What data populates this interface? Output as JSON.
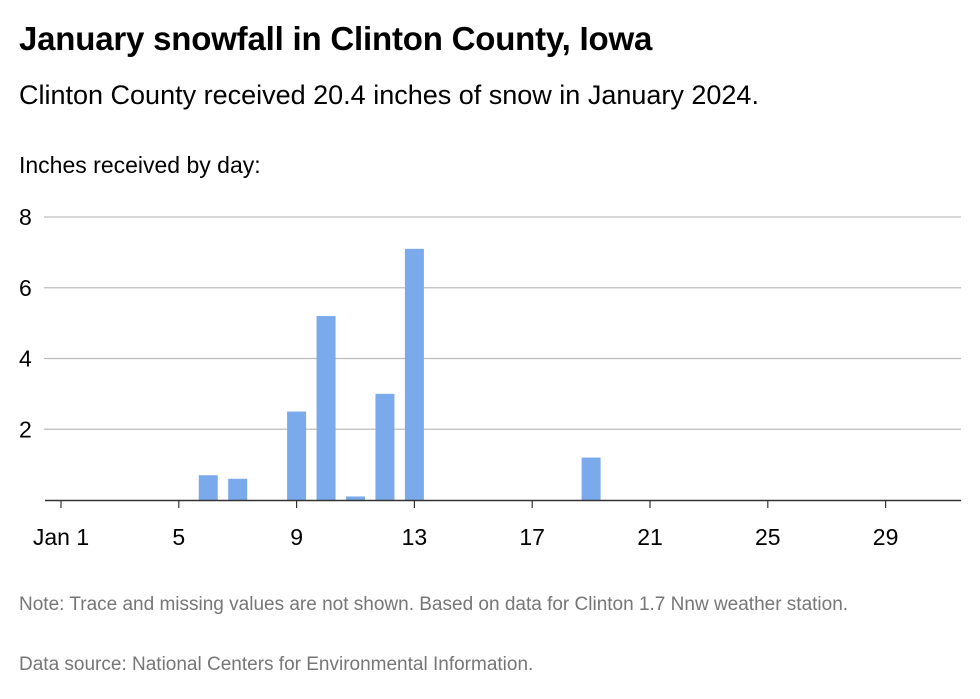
{
  "chart_data": {
    "type": "bar",
    "title": "January snowfall in Clinton County, Iowa",
    "subtitle": "Clinton County received 20.4 inches of snow in January 2024.",
    "ylabel": "Inches received by day:",
    "xlabel": "",
    "ylim": [
      0,
      8
    ],
    "yticks": [
      2,
      4,
      6,
      8
    ],
    "xlim": [
      1,
      31
    ],
    "xticks": [
      1,
      5,
      9,
      13,
      17,
      21,
      25,
      29
    ],
    "xtick_labels": [
      "Jan 1",
      "5",
      "9",
      "13",
      "17",
      "21",
      "25",
      "29"
    ],
    "bar_color": "#7aaaeb",
    "grid": true,
    "x": [
      6,
      7,
      9,
      10,
      11,
      12,
      13,
      19
    ],
    "values": [
      0.7,
      0.6,
      2.5,
      5.2,
      0.1,
      3.0,
      7.1,
      1.2
    ]
  },
  "note": "Note: Trace and missing values are not shown. Based on data for Clinton 1.7 Nnw weather station.",
  "source": "Data source: National Centers for Environmental Information."
}
